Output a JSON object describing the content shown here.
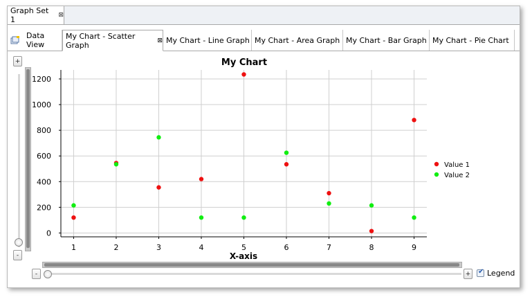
{
  "outer_tab": {
    "label": "Graph Set 1",
    "close_glyph": "⊠"
  },
  "tabs": [
    {
      "label": "Data View",
      "active": false,
      "closable": false
    },
    {
      "label": "My Chart - Scatter Graph",
      "active": true,
      "closable": true
    },
    {
      "label": "My Chart - Line Graph",
      "active": false,
      "closable": false
    },
    {
      "label": "My Chart - Area Graph",
      "active": false,
      "closable": false
    },
    {
      "label": "My Chart - Bar Graph",
      "active": false,
      "closable": false
    },
    {
      "label": "My Chart - Pie Chart",
      "active": false,
      "closable": false
    }
  ],
  "controls": {
    "zoom_in_label": "+",
    "zoom_out_label": "-",
    "h_zoom_out_label": "-",
    "h_zoom_in_label": "+",
    "legend_label": "Legend",
    "legend_checked": true
  },
  "icons": {
    "tab_bar_icon": "new-tab-icon"
  },
  "chart_data": {
    "type": "scatter",
    "title": "My Chart",
    "xlabel": "X-axis",
    "ylabel": "",
    "x": [
      1,
      2,
      3,
      4,
      5,
      6,
      7,
      8,
      9
    ],
    "xlim": [
      0.7,
      9.3
    ],
    "ylim": [
      -30,
      1270
    ],
    "yticks": [
      0,
      200,
      400,
      600,
      800,
      1000,
      1200
    ],
    "grid": true,
    "legend_position": "right",
    "series": [
      {
        "name": "Value 1",
        "color": "#ee1111",
        "values": [
          120,
          545,
          355,
          420,
          1235,
          535,
          310,
          15,
          880
        ]
      },
      {
        "name": "Value 2",
        "color": "#11ee11",
        "values": [
          215,
          535,
          745,
          120,
          120,
          625,
          230,
          215,
          120
        ]
      }
    ]
  }
}
